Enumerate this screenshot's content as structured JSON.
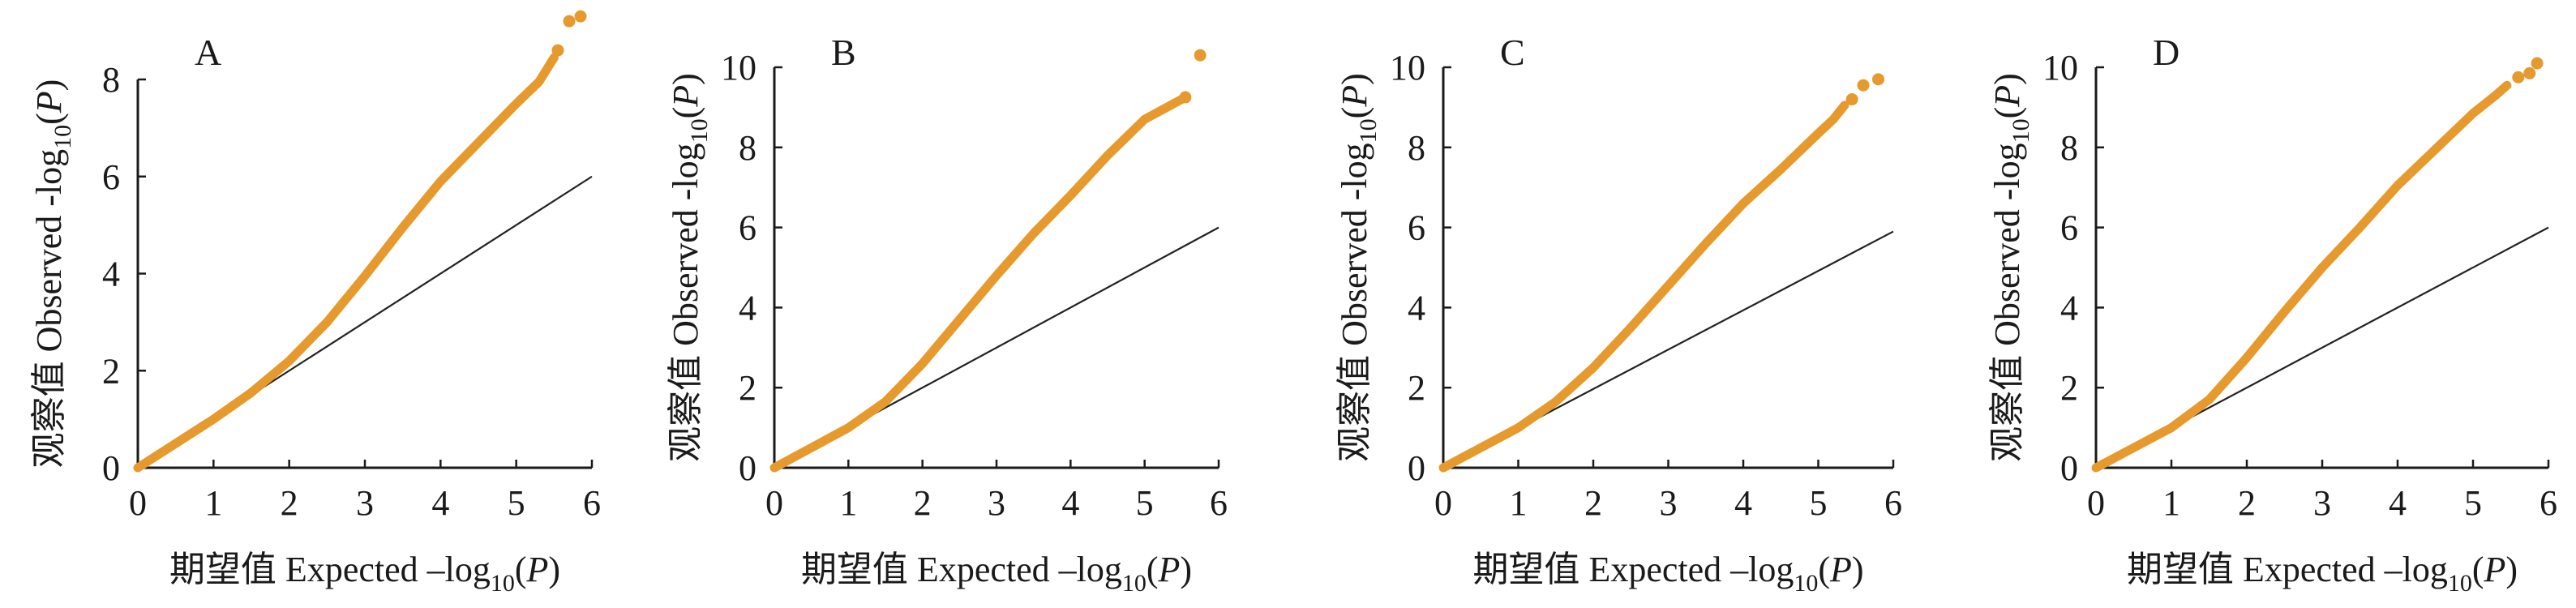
{
  "chart_data": [
    {
      "type": "scatter",
      "panel": "A",
      "xlabel": {
        "cn": "期望值",
        "text": "Expected –log",
        "sub": "10",
        "p": "(P)"
      },
      "ylabel": {
        "cn": "观察值",
        "text": "Observed -log",
        "sub": "10",
        "p": "(P)"
      },
      "xlim": [
        0,
        6
      ],
      "ylim": [
        0,
        8
      ],
      "xticks": [
        0,
        1,
        2,
        3,
        4,
        5,
        6
      ],
      "yticks": [
        0,
        2,
        4,
        6,
        8
      ],
      "diagonal": [
        [
          0,
          0
        ],
        [
          6,
          6
        ]
      ],
      "curve": [
        [
          0,
          0
        ],
        [
          0.5,
          0.5
        ],
        [
          1.0,
          1.0
        ],
        [
          1.5,
          1.55
        ],
        [
          2.0,
          2.2
        ],
        [
          2.5,
          3.0
        ],
        [
          3.0,
          3.95
        ],
        [
          3.5,
          4.95
        ],
        [
          4.0,
          5.9
        ],
        [
          4.5,
          6.7
        ],
        [
          5.0,
          7.5
        ],
        [
          5.3,
          7.95
        ],
        [
          5.5,
          8.45
        ]
      ],
      "tail_points": [
        [
          5.55,
          8.6
        ],
        [
          5.7,
          9.2
        ],
        [
          5.85,
          9.3
        ]
      ],
      "color": "#E69A2E"
    },
    {
      "type": "scatter",
      "panel": "B",
      "xlabel": {
        "cn": "期望值",
        "text": "Expected –log",
        "sub": "10",
        "p": "(P)"
      },
      "ylabel": {
        "cn": "观察值",
        "text": "Observed -log",
        "sub": "10",
        "p": "(P)"
      },
      "xlim": [
        0,
        6
      ],
      "ylim": [
        0,
        10
      ],
      "xticks": [
        0,
        1,
        2,
        3,
        4,
        5,
        6
      ],
      "yticks": [
        0,
        2,
        4,
        6,
        8,
        10
      ],
      "diagonal": [
        [
          0,
          0
        ],
        [
          6,
          6
        ]
      ],
      "curve": [
        [
          0,
          0
        ],
        [
          0.5,
          0.5
        ],
        [
          1.0,
          1.0
        ],
        [
          1.5,
          1.65
        ],
        [
          2.0,
          2.6
        ],
        [
          2.5,
          3.7
        ],
        [
          3.0,
          4.8
        ],
        [
          3.5,
          5.85
        ],
        [
          4.0,
          6.8
        ],
        [
          4.5,
          7.8
        ],
        [
          5.0,
          8.7
        ],
        [
          5.3,
          9.0
        ],
        [
          5.5,
          9.2
        ]
      ],
      "tail_points": [
        [
          5.55,
          9.25
        ],
        [
          5.75,
          10.3
        ]
      ],
      "color": "#E69A2E"
    },
    {
      "type": "scatter",
      "panel": "C",
      "xlabel": {
        "cn": "期望值",
        "text": "Expected –log",
        "sub": "10",
        "p": "(P)"
      },
      "ylabel": {
        "cn": "观察值",
        "text": "Observed -log",
        "sub": "10",
        "p": "(P)"
      },
      "xlim": [
        0,
        6
      ],
      "ylim": [
        0,
        10
      ],
      "xticks": [
        0,
        1,
        2,
        3,
        4,
        5,
        6
      ],
      "yticks": [
        0,
        2,
        4,
        6,
        8,
        10
      ],
      "diagonal": [
        [
          0,
          0
        ],
        [
          6,
          5.9
        ]
      ],
      "curve": [
        [
          0,
          0
        ],
        [
          0.5,
          0.5
        ],
        [
          1.0,
          1.0
        ],
        [
          1.5,
          1.65
        ],
        [
          2.0,
          2.5
        ],
        [
          2.5,
          3.5
        ],
        [
          3.0,
          4.55
        ],
        [
          3.5,
          5.6
        ],
        [
          4.0,
          6.6
        ],
        [
          4.5,
          7.45
        ],
        [
          5.0,
          8.35
        ],
        [
          5.2,
          8.7
        ],
        [
          5.35,
          9.05
        ]
      ],
      "tail_points": [
        [
          5.45,
          9.2
        ],
        [
          5.6,
          9.55
        ],
        [
          5.8,
          9.7
        ]
      ],
      "color": "#E69A2E"
    },
    {
      "type": "scatter",
      "panel": "D",
      "xlabel": {
        "cn": "期望值",
        "text": "Expected –log",
        "sub": "10",
        "p": "(P)"
      },
      "ylabel": {
        "cn": "观察值",
        "text": "Observed -log",
        "sub": "10",
        "p": "(P)"
      },
      "xlim": [
        0,
        6
      ],
      "ylim": [
        0,
        10
      ],
      "xticks": [
        0,
        1,
        2,
        3,
        4,
        5,
        6
      ],
      "yticks": [
        0,
        2,
        4,
        6,
        8,
        10
      ],
      "diagonal": [
        [
          0,
          0
        ],
        [
          6,
          6
        ]
      ],
      "curve": [
        [
          0,
          0
        ],
        [
          0.5,
          0.5
        ],
        [
          1.0,
          1.0
        ],
        [
          1.5,
          1.7
        ],
        [
          2.0,
          2.75
        ],
        [
          2.5,
          3.9
        ],
        [
          3.0,
          5.0
        ],
        [
          3.5,
          6.0
        ],
        [
          4.0,
          7.05
        ],
        [
          4.5,
          7.95
        ],
        [
          5.0,
          8.85
        ],
        [
          5.3,
          9.3
        ],
        [
          5.45,
          9.55
        ]
      ],
      "tail_points": [
        [
          5.6,
          9.75
        ],
        [
          5.75,
          9.85
        ],
        [
          5.85,
          10.1
        ]
      ],
      "color": "#E69A2E"
    }
  ]
}
